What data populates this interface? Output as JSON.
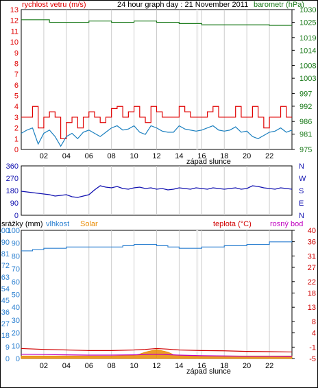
{
  "title": "24 hour graph day : 21 November 2011",
  "colors": {
    "wind": "#e00000",
    "wind_avg": "#1a7fbf",
    "pressure": "#1a7a1a",
    "direction": "#1010b0",
    "rain": "#2a7fd0",
    "humidity": "#2a7fd0",
    "solar": "#e88a00",
    "temperature": "#d00000",
    "dewpoint": "#c000c0",
    "grid": "#cccccc",
    "frame": "#000000"
  },
  "sunset_label": "západ slunce",
  "chart_data": [
    {
      "type": "line",
      "name": "wind-pressure",
      "left_axis_label": "rychlost vetru (m/s)",
      "right_axis_label": "barometr (hPa)",
      "left_ticks": [
        "0",
        "1",
        "2",
        "3",
        "4",
        "5",
        "6",
        "7",
        "8",
        "9",
        "10",
        "11",
        "12",
        "13"
      ],
      "right_ticks": [
        "975",
        "981",
        "986",
        "992",
        "997",
        "1003",
        "1008",
        "1014",
        "1019",
        "1025",
        "1030"
      ],
      "ylim_left": [
        0,
        13
      ],
      "ylim_right": [
        975,
        1030
      ],
      "x_ticks": [
        "02",
        "04",
        "06",
        "08",
        "10",
        "12",
        "14",
        "16",
        "18",
        "20",
        "22"
      ],
      "xlim": [
        0,
        24
      ],
      "sunset_hour": 15.6,
      "series": [
        {
          "key": "gust",
          "axis": "left",
          "x": [
            0,
            0.5,
            1,
            1.5,
            2,
            2.5,
            3,
            3.5,
            4,
            4.5,
            5,
            5.5,
            6,
            6.5,
            7,
            7.5,
            8,
            8.5,
            9,
            9.5,
            10,
            10.5,
            11,
            11.5,
            12,
            12.5,
            13,
            13.5,
            14,
            14.5,
            15,
            15.5,
            16,
            16.5,
            17,
            17.5,
            18,
            18.5,
            19,
            19.5,
            20,
            20.5,
            21,
            21.5,
            22,
            22.5,
            23,
            23.5,
            24
          ],
          "values": [
            3,
            3,
            4,
            2,
            3,
            3.5,
            3,
            1,
            2.5,
            3,
            2,
            3,
            3.5,
            3,
            2.5,
            3,
            3.8,
            4,
            3,
            3.5,
            4,
            3,
            2.5,
            4,
            3.5,
            3,
            3,
            3,
            4,
            3.5,
            3,
            3,
            3,
            3.5,
            4,
            3,
            3,
            3,
            4,
            3,
            3,
            4,
            3,
            2,
            3,
            3,
            4,
            3,
            3
          ]
        },
        {
          "key": "average",
          "axis": "left",
          "x": [
            0,
            0.5,
            1,
            1.5,
            2,
            2.5,
            3,
            3.5,
            4,
            4.5,
            5,
            5.5,
            6,
            6.5,
            7,
            7.5,
            8,
            8.5,
            9,
            9.5,
            10,
            10.5,
            11,
            11.5,
            12,
            12.5,
            13,
            13.5,
            14,
            14.5,
            15,
            15.5,
            16,
            16.5,
            17,
            17.5,
            18,
            18.5,
            19,
            19.5,
            20,
            20.5,
            21,
            21.5,
            22,
            22.5,
            23,
            23.5,
            24
          ],
          "values": [
            1.5,
            1.8,
            2,
            0.5,
            1.5,
            1.8,
            1.2,
            0.3,
            1.2,
            1.5,
            1,
            1.6,
            1.8,
            1.5,
            1.2,
            1.6,
            2,
            2.2,
            1.8,
            1.9,
            2.2,
            1.6,
            1.4,
            2.2,
            2,
            1.7,
            1.6,
            1.6,
            2.2,
            1.9,
            1.8,
            1.7,
            1.8,
            2,
            2.2,
            1.8,
            1.7,
            1.8,
            2.1,
            1.6,
            1.7,
            1.2,
            1,
            1.3,
            1.6,
            1.7,
            2,
            1.6,
            1.8
          ]
        },
        {
          "key": "pressure",
          "axis": "right",
          "x": [
            0,
            2,
            2.5,
            5,
            6,
            8,
            10,
            12,
            14,
            16,
            18,
            20,
            22,
            24
          ],
          "values": [
            1026,
            1026,
            1025,
            1025,
            1025.5,
            1025,
            1025.5,
            1025,
            1024.5,
            1024,
            1024,
            1024,
            1023.8,
            1023.8
          ]
        }
      ]
    },
    {
      "type": "line",
      "name": "wind-direction",
      "left_ticks": [
        "0",
        "90",
        "180",
        "270",
        "360"
      ],
      "right_ticks": [
        "N",
        "E",
        "S",
        "W",
        "N"
      ],
      "ylim": [
        0,
        360
      ],
      "x_ticks": [],
      "xlim": [
        0,
        24
      ],
      "series": [
        {
          "key": "direction",
          "x": [
            0,
            0.5,
            1,
            1.5,
            2,
            2.5,
            3,
            3.5,
            4,
            4.5,
            5,
            5.5,
            6,
            6.5,
            7,
            7.5,
            8,
            8.5,
            9,
            9.5,
            10,
            10.5,
            11,
            11.5,
            12,
            12.5,
            13,
            13.5,
            14,
            14.5,
            15,
            15.5,
            16,
            16.5,
            17,
            17.5,
            18,
            18.5,
            19,
            19.5,
            20,
            20.5,
            21,
            21.5,
            22,
            22.5,
            23,
            23.5,
            24
          ],
          "values": [
            175,
            170,
            165,
            160,
            155,
            150,
            140,
            145,
            150,
            135,
            130,
            140,
            150,
            185,
            215,
            205,
            200,
            210,
            195,
            190,
            200,
            205,
            195,
            200,
            190,
            195,
            185,
            190,
            200,
            195,
            190,
            200,
            195,
            190,
            200,
            195,
            190,
            195,
            200,
            190,
            195,
            215,
            210,
            200,
            195,
            190,
            200,
            195,
            190
          ]
        }
      ]
    },
    {
      "type": "line",
      "name": "rain-humidity-temperature",
      "left_axis_labels": [
        "srážky (mm)",
        "vlhkost",
        "Solar"
      ],
      "right_axis_labels": [
        "teplota (°C)",
        "rosný bod"
      ],
      "left_ticks_rain": [
        "0",
        "10",
        "20",
        "30",
        "40",
        "50",
        "60",
        "70",
        "80",
        "90",
        "100"
      ],
      "left_ticks_humidity": [
        "0",
        "9",
        "18",
        "27",
        "36",
        "45",
        "54",
        "63",
        "72",
        "81",
        "90",
        "100"
      ],
      "right_ticks": [
        "-5",
        "-1",
        "4",
        "8",
        "13",
        "18",
        "22",
        "27",
        "31",
        "36",
        "40"
      ],
      "ylim_left": [
        0,
        100
      ],
      "ylim_right": [
        -5,
        40
      ],
      "x_ticks": [
        "02",
        "04",
        "06",
        "08",
        "10",
        "12",
        "14",
        "16",
        "18",
        "20",
        "22"
      ],
      "xlim": [
        0,
        24
      ],
      "sunset_hour": 15.6,
      "series": [
        {
          "key": "humidity",
          "axis": "left",
          "x": [
            0,
            1,
            2,
            3,
            4,
            6,
            8,
            9,
            10,
            11,
            12,
            13,
            14,
            15,
            16,
            18,
            20,
            22,
            24
          ],
          "values": [
            84,
            85,
            86,
            86,
            87,
            87,
            87,
            88,
            89,
            89,
            88,
            87,
            86,
            86,
            87,
            88,
            89,
            91,
            92
          ]
        },
        {
          "key": "temperature",
          "axis": "right",
          "x": [
            0,
            2,
            4,
            6,
            8,
            10,
            11,
            12,
            13,
            14,
            16,
            18,
            20,
            22,
            24
          ],
          "values": [
            -1.5,
            -1.8,
            -2,
            -2.2,
            -2.2,
            -2,
            -1.8,
            -1.5,
            -1.7,
            -2,
            -2.2,
            -2.3,
            -2.5,
            -2.6,
            -2.7
          ]
        },
        {
          "key": "dewpoint",
          "axis": "right",
          "x": [
            0,
            2,
            4,
            6,
            8,
            10,
            12,
            14,
            16,
            18,
            20,
            22,
            24
          ],
          "values": [
            -3.5,
            -3.6,
            -3.7,
            -3.8,
            -3.8,
            -3.7,
            -3.5,
            -3.8,
            -4,
            -4.1,
            -4.2,
            -4.2,
            -4.3
          ]
        },
        {
          "key": "solar",
          "axis": "left",
          "x": [
            0,
            2,
            4,
            6,
            8,
            9,
            10,
            10.5,
            11,
            11.5,
            12,
            12.5,
            13,
            13.5,
            14,
            15,
            16,
            18,
            20,
            22,
            24
          ],
          "values": [
            2,
            2,
            2,
            2,
            2,
            2.2,
            2.5,
            3.5,
            5,
            6,
            7,
            6,
            5,
            3,
            2.5,
            2,
            2,
            2,
            2,
            2,
            2
          ]
        }
      ]
    }
  ]
}
